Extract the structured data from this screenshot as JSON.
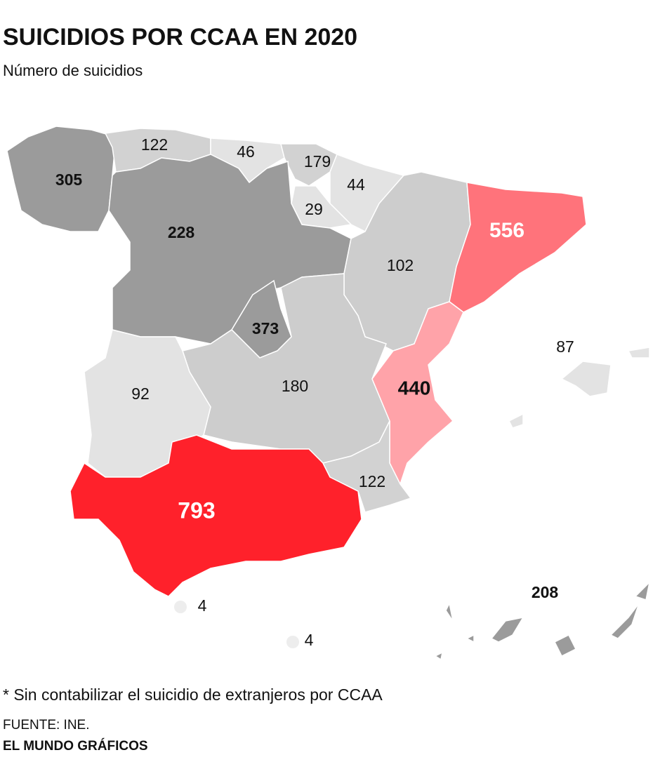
{
  "header": {
    "title": "SUICIDIOS POR CCAA EN 2020",
    "subtitle": "Número de suicidios"
  },
  "regions": [
    {
      "value": 305,
      "color": "#9b9b9b"
    },
    {
      "value": 122,
      "color": "#d2d2d2"
    },
    {
      "value": 46,
      "color": "#e3e3e3"
    },
    {
      "value": 179,
      "color": "#d2d2d2"
    },
    {
      "value": 44,
      "color": "#e3e3e3"
    },
    {
      "value": 29,
      "color": "#e3e3e3"
    },
    {
      "value": 228,
      "color": "#9b9b9b"
    },
    {
      "value": 102,
      "color": "#cdcdcd"
    },
    {
      "value": 556,
      "color": "#ff737b"
    },
    {
      "value": 373,
      "color": "#9b9b9b"
    },
    {
      "value": 180,
      "color": "#cdcdcd"
    },
    {
      "value": 440,
      "color": "#ffa3a9"
    },
    {
      "value": 87,
      "color": "#e3e3e3"
    },
    {
      "value": 92,
      "color": "#e3e3e3"
    },
    {
      "value": 793,
      "color": "#ff212b"
    },
    {
      "value": 122,
      "color": "#d2d2d2"
    },
    {
      "value": 4,
      "color": "#ededed"
    },
    {
      "value": 4,
      "color": "#ededed"
    },
    {
      "value": 208,
      "color": "#9b9b9b"
    }
  ],
  "footer": {
    "note": "* Sin contabilizar el suicidio de extranjeros por CCAA",
    "source": "FUENTE: INE.",
    "credit": "EL MUNDO GRÁFICOS"
  }
}
